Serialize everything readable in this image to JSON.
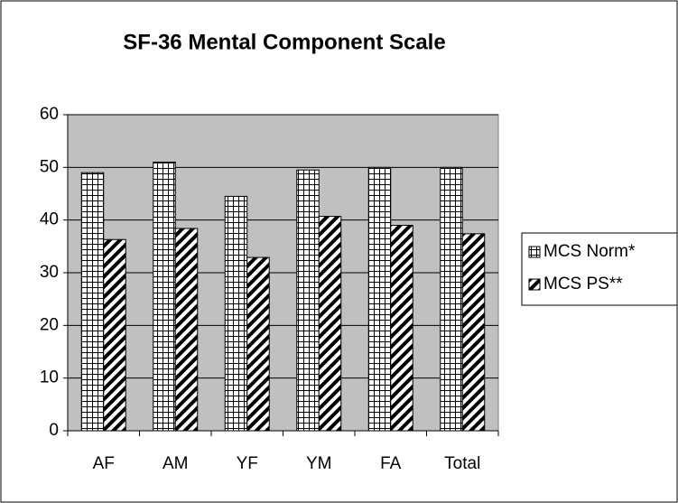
{
  "chart_data": {
    "type": "bar",
    "title": "SF-36 Mental Component Scale",
    "categories": [
      "AF",
      "AM",
      "YF",
      "YM",
      "FA",
      "Total"
    ],
    "series": [
      {
        "name": "MCS Norm*",
        "color": "#000000",
        "pattern": "grid",
        "values": [
          49,
          51,
          44.5,
          49.5,
          50,
          50
        ]
      },
      {
        "name": "MCS PS**",
        "color": "#000000",
        "pattern": "diagonal",
        "values": [
          36.3,
          38.4,
          32.9,
          40.7,
          39,
          37.4
        ]
      }
    ],
    "ylim": [
      0,
      60
    ],
    "yticks": [
      0,
      10,
      20,
      30,
      40,
      50,
      60
    ],
    "grid": true,
    "legend": "right",
    "plot_background": "#c0c0c0"
  }
}
